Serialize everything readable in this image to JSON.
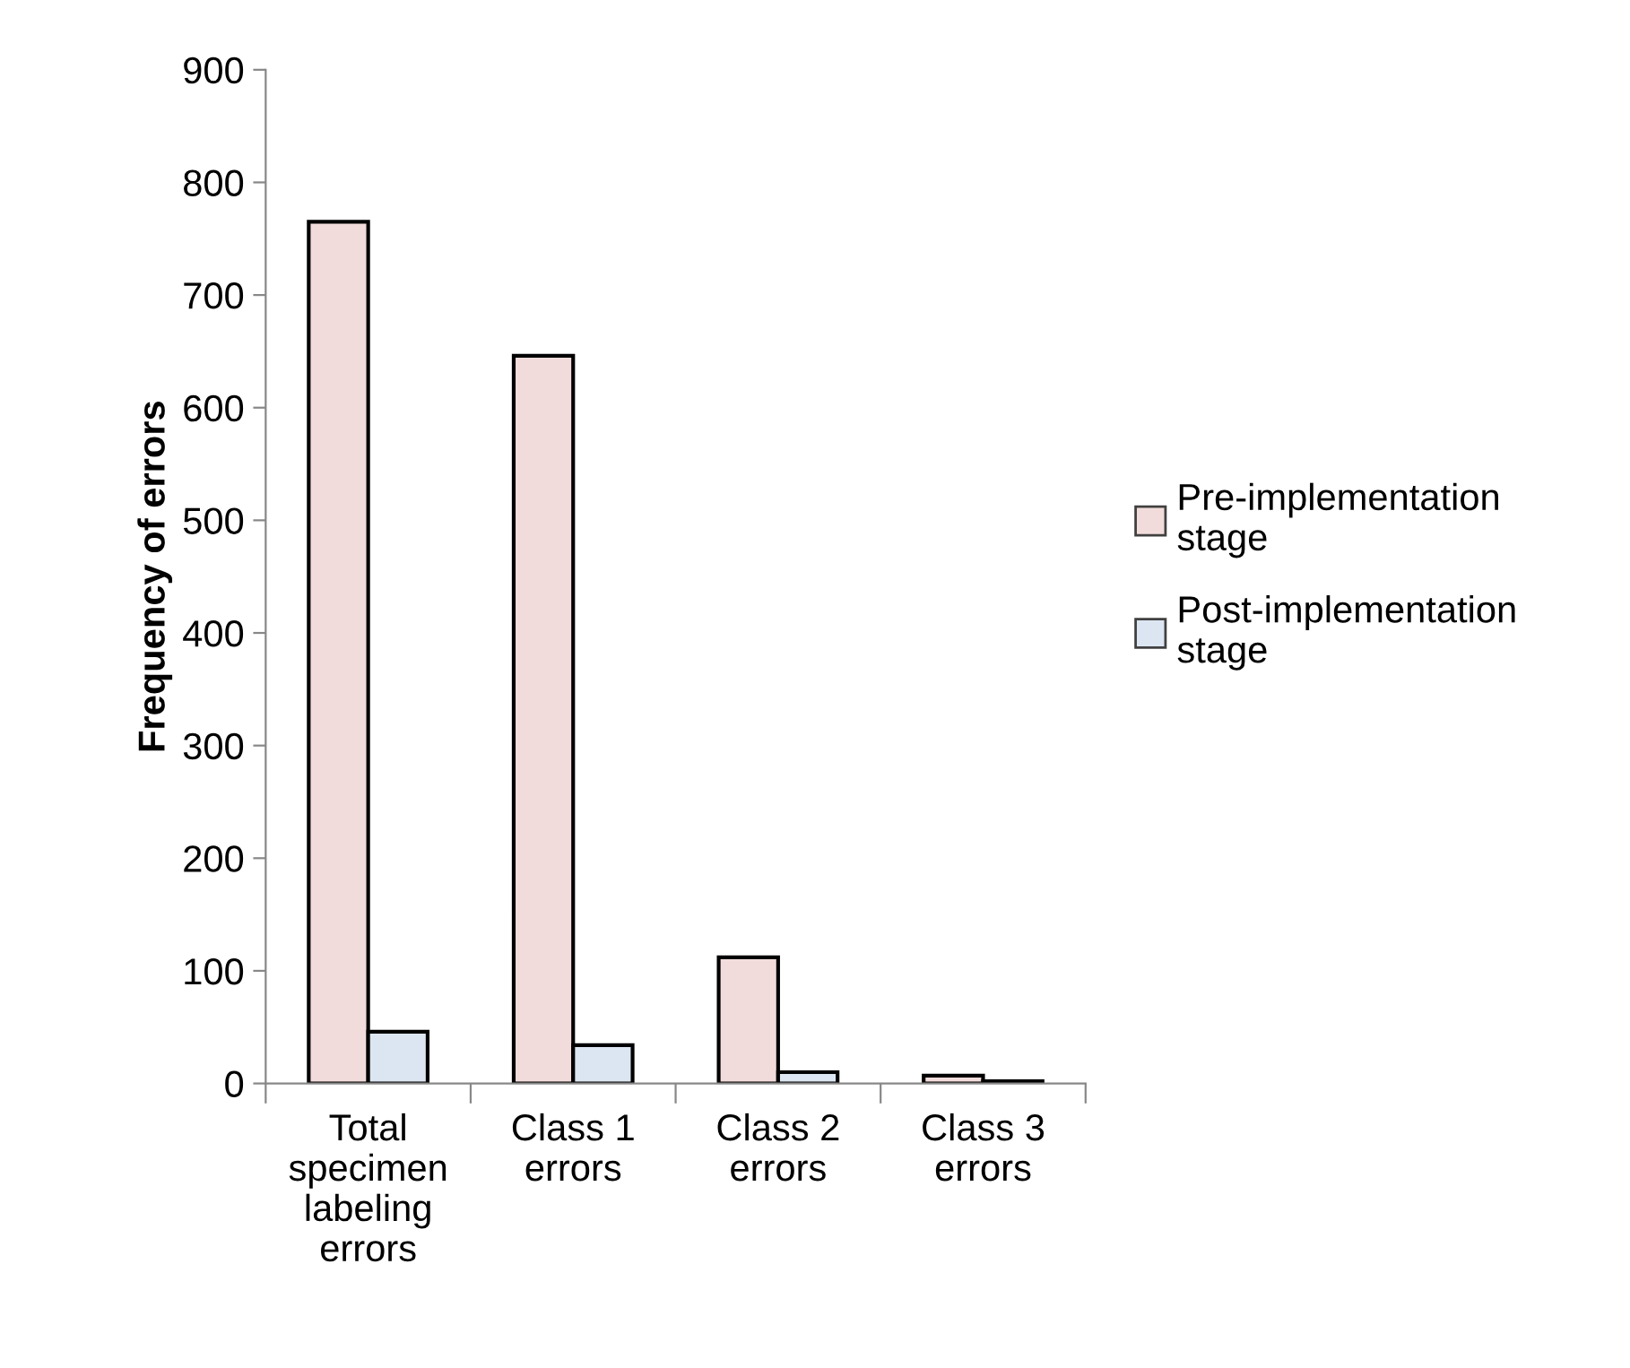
{
  "chart_data": {
    "type": "bar",
    "ylabel": "Frequency of errors",
    "categories": [
      "Total specimen labeling errors",
      "Class 1 errors",
      "Class 2 errors",
      "Class 3 errors"
    ],
    "series": [
      {
        "name": "Pre-implementation stage",
        "color": "#f2dcdb",
        "values": [
          765,
          646,
          112,
          7
        ]
      },
      {
        "name": "Post-implementation stage",
        "color": "#dce6f2",
        "values": [
          46,
          34,
          10,
          2
        ]
      }
    ],
    "ylim": [
      0,
      900
    ],
    "yticks": [
      0,
      100,
      200,
      300,
      400,
      500,
      600,
      700,
      800,
      900
    ],
    "grid": false,
    "legend": "right"
  }
}
